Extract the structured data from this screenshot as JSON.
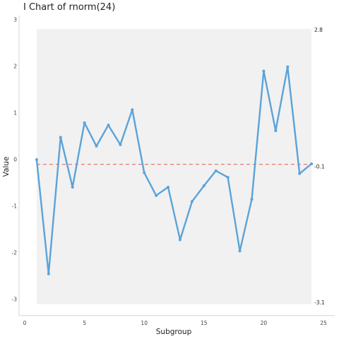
{
  "chart_data": {
    "type": "line",
    "title": "I Chart of rnorm(24)",
    "xlabel": "Subgroup",
    "ylabel": "Value",
    "x": [
      1,
      2,
      3,
      4,
      5,
      6,
      7,
      8,
      9,
      10,
      11,
      12,
      13,
      14,
      15,
      16,
      17,
      18,
      19,
      20,
      21,
      22,
      23,
      24
    ],
    "values": [
      0.0,
      -2.45,
      0.48,
      -0.59,
      0.79,
      0.29,
      0.74,
      0.32,
      1.07,
      -0.28,
      -0.77,
      -0.59,
      -1.72,
      -0.9,
      -0.56,
      -0.24,
      -0.38,
      -1.96,
      -0.85,
      1.9,
      0.62,
      1.99,
      -0.3,
      -0.09
    ],
    "xlim": [
      0,
      25
    ],
    "ylim": [
      -3.3,
      3.0
    ],
    "xticks": [
      0,
      5,
      10,
      15,
      20,
      25
    ],
    "yticks": [
      -3,
      -2,
      -1,
      0,
      1,
      2,
      3
    ],
    "grid": false,
    "center_line": -0.1,
    "control_limits": {
      "upper": 2.8,
      "lower": -3.1
    },
    "limit_labels": {
      "upper": "2.8",
      "center": "-0.1",
      "lower": "-3.1"
    },
    "colors": {
      "line": "#5ba3d9",
      "center_line": "#e8786e",
      "limits_band": "#f1f1f1",
      "axis": "#cccccc"
    }
  }
}
